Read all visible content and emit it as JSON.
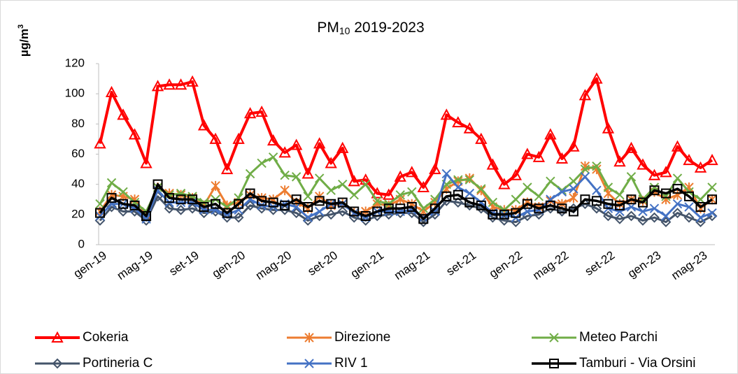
{
  "chart_data": {
    "type": "line",
    "title_parts": [
      "PM",
      "10",
      " 2019-2023"
    ],
    "ylabel_parts": [
      "µg/m",
      "3"
    ],
    "categories": [
      "gen-19",
      null,
      null,
      null,
      "mag-19",
      null,
      null,
      null,
      "set-19",
      null,
      null,
      null,
      "gen-20",
      null,
      null,
      null,
      "mag-20",
      null,
      null,
      null,
      "set-20",
      null,
      null,
      null,
      "gen-21",
      null,
      null,
      null,
      "mag-21",
      null,
      null,
      null,
      "set-21",
      null,
      null,
      null,
      "gen-22",
      null,
      null,
      null,
      "mag-22",
      null,
      null,
      null,
      "set-22",
      null,
      null,
      null,
      "gen-23",
      null,
      null,
      null,
      "mag-23",
      null
    ],
    "ylim": [
      0,
      120
    ],
    "yticks": [
      0,
      20,
      40,
      60,
      80,
      100,
      120
    ],
    "grid": false,
    "series": [
      {
        "name": "Cokeria",
        "color": "#ff0000",
        "marker": "triangle",
        "width": 4,
        "values": [
          67,
          101,
          86,
          73,
          54,
          105,
          106,
          106,
          108,
          79,
          70,
          50,
          70,
          87,
          88,
          69,
          61,
          66,
          47,
          67,
          54,
          64,
          42,
          43,
          34,
          33,
          45,
          48,
          38,
          50,
          86,
          81,
          77,
          70,
          53,
          40,
          46,
          60,
          58,
          73,
          57,
          65,
          99,
          110,
          77,
          55,
          64,
          53,
          46,
          48,
          65,
          56,
          51,
          56
        ]
      },
      {
        "name": "Direzione",
        "color": "#ed7d31",
        "marker": "star",
        "width": 3,
        "values": [
          22,
          33,
          32,
          30,
          20,
          38,
          34,
          33,
          31,
          26,
          39,
          26,
          28,
          33,
          31,
          30,
          36,
          28,
          24,
          32,
          26,
          27,
          21,
          22,
          27,
          26,
          30,
          27,
          22,
          28,
          37,
          42,
          44,
          36,
          25,
          23,
          23,
          28,
          25,
          29,
          27,
          31,
          52,
          50,
          34,
          27,
          30,
          29,
          35,
          30,
          33,
          38,
          24,
          30
        ]
      },
      {
        "name": "Meteo Parchi",
        "color": "#70ad47",
        "marker": "x",
        "width": 3,
        "values": [
          27,
          41,
          35,
          28,
          22,
          38,
          33,
          34,
          32,
          28,
          30,
          25,
          31,
          47,
          54,
          58,
          46,
          45,
          32,
          44,
          36,
          40,
          33,
          40,
          29,
          27,
          33,
          35,
          24,
          30,
          40,
          43,
          43,
          37,
          28,
          23,
          30,
          38,
          32,
          42,
          36,
          42,
          50,
          52,
          38,
          33,
          45,
          30,
          38,
          32,
          44,
          35,
          30,
          38
        ]
      },
      {
        "name": "Portineria C",
        "color": "#44546a",
        "marker": "diamond",
        "width": 3,
        "values": [
          16,
          25,
          22,
          22,
          16,
          32,
          24,
          23,
          24,
          21,
          22,
          18,
          18,
          26,
          24,
          23,
          23,
          21,
          16,
          19,
          20,
          22,
          18,
          16,
          19,
          20,
          21,
          21,
          15,
          20,
          29,
          28,
          26,
          24,
          18,
          16,
          15,
          19,
          20,
          24,
          22,
          24,
          27,
          24,
          19,
          17,
          19,
          16,
          18,
          15,
          21,
          18,
          15,
          19
        ]
      },
      {
        "name": "RIV 1",
        "color": "#4472c4",
        "marker": "x",
        "width": 3,
        "values": [
          19,
          27,
          27,
          24,
          17,
          36,
          28,
          28,
          28,
          23,
          23,
          20,
          23,
          30,
          26,
          25,
          27,
          25,
          18,
          22,
          27,
          27,
          21,
          18,
          22,
          22,
          22,
          23,
          18,
          22,
          47,
          38,
          34,
          28,
          21,
          20,
          18,
          22,
          23,
          30,
          35,
          37,
          45,
          36,
          24,
          22,
          25,
          22,
          24,
          19,
          27,
          25,
          18,
          21
        ]
      },
      {
        "name": "Tamburi - Via Orsini",
        "color": "#000000",
        "marker": "square",
        "width": 3.5,
        "values": [
          21,
          31,
          27,
          26,
          19,
          40,
          31,
          30,
          30,
          25,
          27,
          21,
          27,
          34,
          29,
          28,
          26,
          30,
          25,
          29,
          27,
          28,
          22,
          19,
          22,
          24,
          24,
          25,
          17,
          24,
          32,
          33,
          28,
          26,
          20,
          20,
          21,
          27,
          24,
          26,
          24,
          22,
          30,
          29,
          27,
          26,
          30,
          28,
          36,
          34,
          37,
          32,
          25,
          30
        ]
      }
    ]
  }
}
